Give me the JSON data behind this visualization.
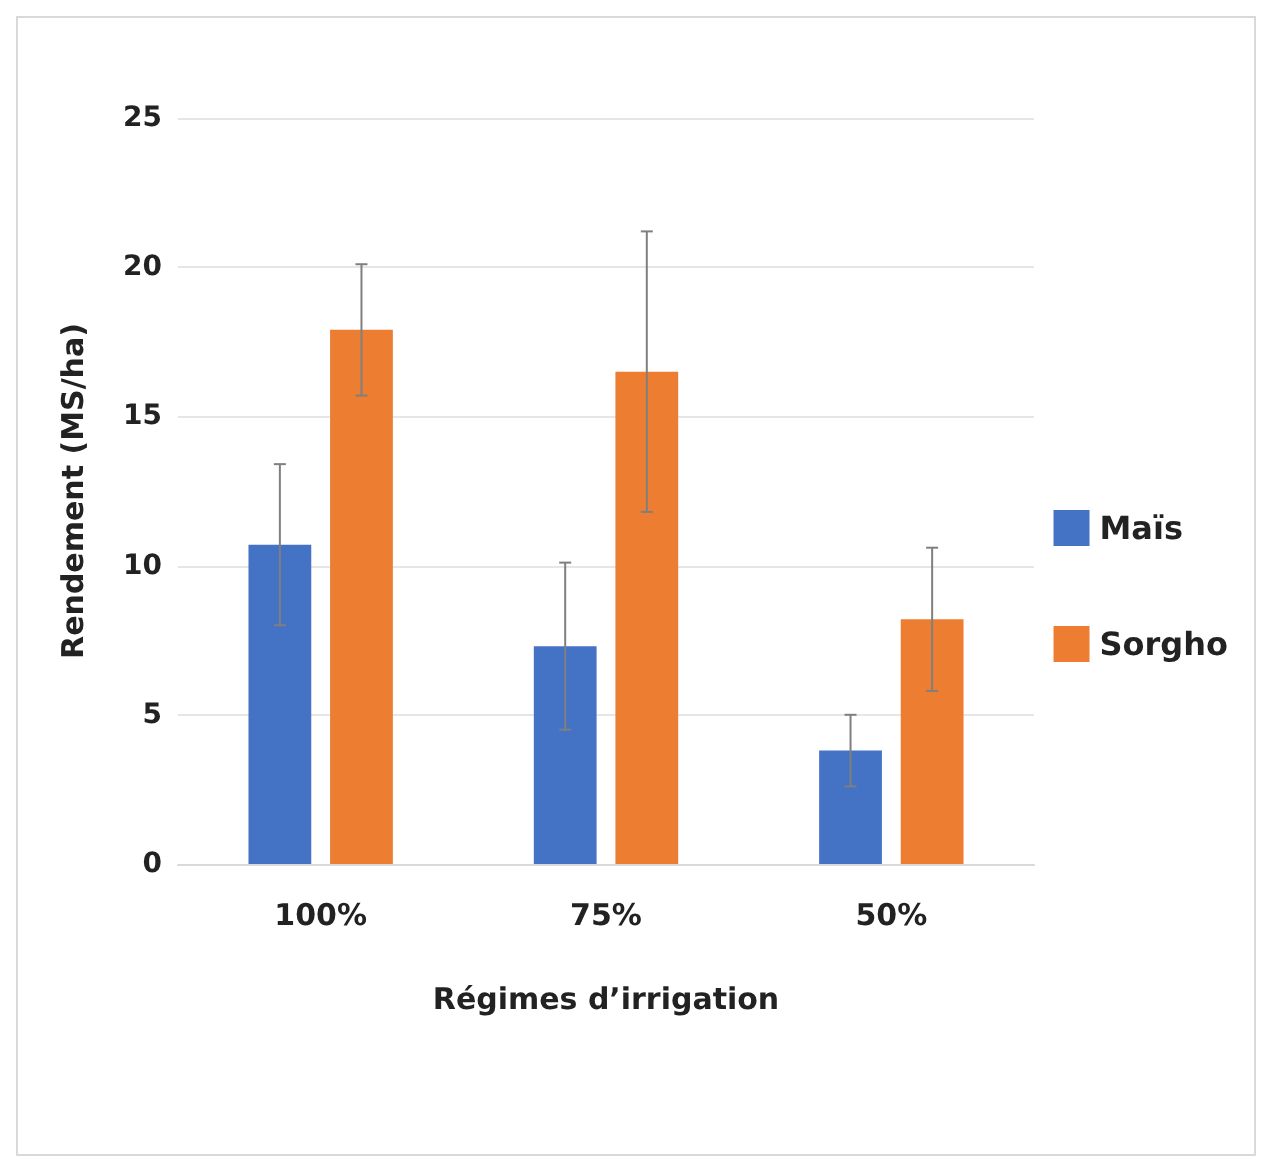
{
  "chart_data": {
    "type": "bar",
    "xlabel": "Régimes d’irrigation",
    "ylabel": "Rendement (MS/ha)",
    "categories": [
      "100%",
      "75%",
      "50%"
    ],
    "series": [
      {
        "name": "Maïs",
        "color": "#4472c4",
        "values": [
          10.7,
          7.3,
          3.8
        ],
        "errors": [
          2.7,
          2.8,
          1.2
        ]
      },
      {
        "name": "Sorgho",
        "color": "#ed7d31",
        "values": [
          17.9,
          16.5,
          8.2
        ],
        "errors": [
          2.2,
          4.7,
          2.4
        ]
      }
    ],
    "ylim": [
      0,
      25
    ],
    "yticks": [
      0,
      5,
      10,
      15,
      20,
      25
    ],
    "grid": "y",
    "legend": "right"
  }
}
